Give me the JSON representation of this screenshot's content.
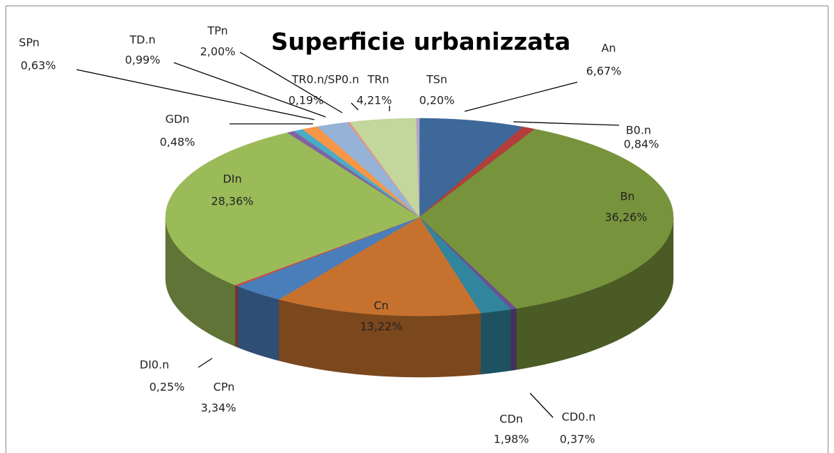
{
  "chart_data": {
    "type": "pie",
    "title": "Superficie urbanizzata",
    "categories": [
      "An",
      "B0.n",
      "Bn",
      "CD0.n",
      "CDn",
      "Cn",
      "CPn",
      "DI0.n",
      "DIn",
      "GDn",
      "SPn",
      "TD.n",
      "TPn",
      "TR0.n/SP0.n",
      "TRn",
      "TSn"
    ],
    "values": [
      6.67,
      0.84,
      36.26,
      0.37,
      1.98,
      13.22,
      3.34,
      0.25,
      28.36,
      0.48,
      0.63,
      0.99,
      2.0,
      0.19,
      4.21,
      0.2
    ],
    "value_labels": [
      "6,67%",
      "0,84%",
      "36,26%",
      "0,37%",
      "1,98%",
      "13,22%",
      "3,34%",
      "0,25%",
      "28,36%",
      "0,48%",
      "0,63%",
      "0,99%",
      "2,00%",
      "0,19%",
      "4,21%",
      "0,20%"
    ],
    "colors": [
      "#3d6899",
      "#b33d3b",
      "#77933c",
      "#6b4f96",
      "#31859c",
      "#c6722e",
      "#4a7ebb",
      "#c0504d",
      "#9bbb59",
      "#8064a2",
      "#4bacc6",
      "#f79646",
      "#95b3d7",
      "#d99694",
      "#c3d69b",
      "#b3a2c7"
    ]
  }
}
